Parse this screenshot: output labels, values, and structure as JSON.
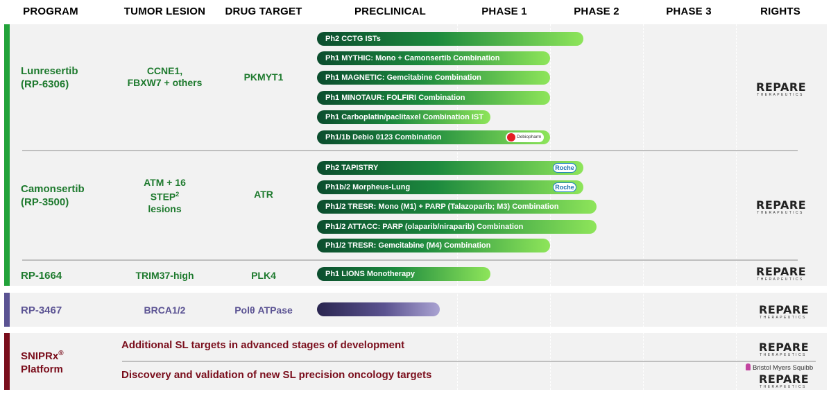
{
  "headers": {
    "program": "PROGRAM",
    "tumor_lesion": "TUMOR LESION",
    "drug_target": "DRUG TARGET",
    "preclinical": "PRECLINICAL",
    "phase1": "PHASE 1",
    "phase2": "PHASE 2",
    "phase3": "PHASE 3",
    "rights": "RIGHTS"
  },
  "colors": {
    "green": "#22a33a",
    "green_text": "#1e7a2e",
    "purple": "#5b5393",
    "maroon": "#7a0e1c",
    "band_bg": "#f2f2f2"
  },
  "programs": {
    "lunresertib": {
      "name_line1": "Lunresertib",
      "name_line2": "(RP-6306)",
      "lesion_line1": "CCNE1,",
      "lesion_line2": "FBXW7 + others",
      "target": "PKMYT1",
      "trials": [
        {
          "label": "Ph2 CCTG ISTs",
          "progress": "Phase 2"
        },
        {
          "label": "Ph1 MYTHIC: Mono + Camonsertib Combination",
          "progress": "Phase 1"
        },
        {
          "label": "Ph1 MAGNETIC: Gemcitabine Combination",
          "progress": "Phase 1"
        },
        {
          "label": "Ph1 MINOTAUR: FOLFIRI Combination",
          "progress": "Phase 1"
        },
        {
          "label": "Ph1 Carboplatin/paclitaxel Combination IST",
          "progress": "Phase 1 (partial)"
        },
        {
          "label": "Ph1/1b Debio 0123 Combination",
          "progress": "Phase 1",
          "partner": "Debiopharm"
        }
      ]
    },
    "camonsertib": {
      "name_line1": "Camonsertib",
      "name_line2": "(RP-3500)",
      "lesion_line1": "ATM + 16",
      "lesion_line2": "STEP",
      "lesion_sup": "2",
      "lesion_line3": "lesions",
      "target": "ATR",
      "trials": [
        {
          "label": "Ph2 TAPISTRY",
          "progress": "Phase 2",
          "partner": "Roche"
        },
        {
          "label": "Ph1b/2 Morpheus-Lung",
          "progress": "Phase 2",
          "partner": "Roche"
        },
        {
          "label": "Ph1/2 TRESR: Mono (M1) + PARP (Talazoparib; M3) Combination",
          "progress": "Phase 2"
        },
        {
          "label": "Ph1/2 ATTACC: PARP (olaparib/niraparib) Combination",
          "progress": "Phase 2"
        },
        {
          "label": "Ph1/2 TRESR: Gemcitabine (M4) Combination",
          "progress": "Phase 1"
        }
      ]
    },
    "rp1664": {
      "name": "RP-1664",
      "lesion": "TRIM37-high",
      "target": "PLK4",
      "trials": [
        {
          "label": "Ph1 LIONS Monotherapy",
          "progress": "Phase 1 (partial)"
        }
      ]
    },
    "rp3467": {
      "name": "RP-3467",
      "lesion": "BRCA1/2",
      "target": "Polθ ATPase",
      "progress": "Preclinical"
    },
    "sniprx": {
      "name_line1": "SNIPRx",
      "name_reg": "®",
      "name_line2": "Platform",
      "row1": "Additional SL targets in advanced stages of development",
      "row2": "Discovery and validation of new SL precision oncology targets"
    }
  },
  "partners": {
    "roche": "Roche",
    "debiopharm": "Debiopharm",
    "bms": "Bristol Myers Squibb"
  },
  "rights_logo": {
    "main": "REPARE",
    "sub": "THERAPEUTICS"
  }
}
